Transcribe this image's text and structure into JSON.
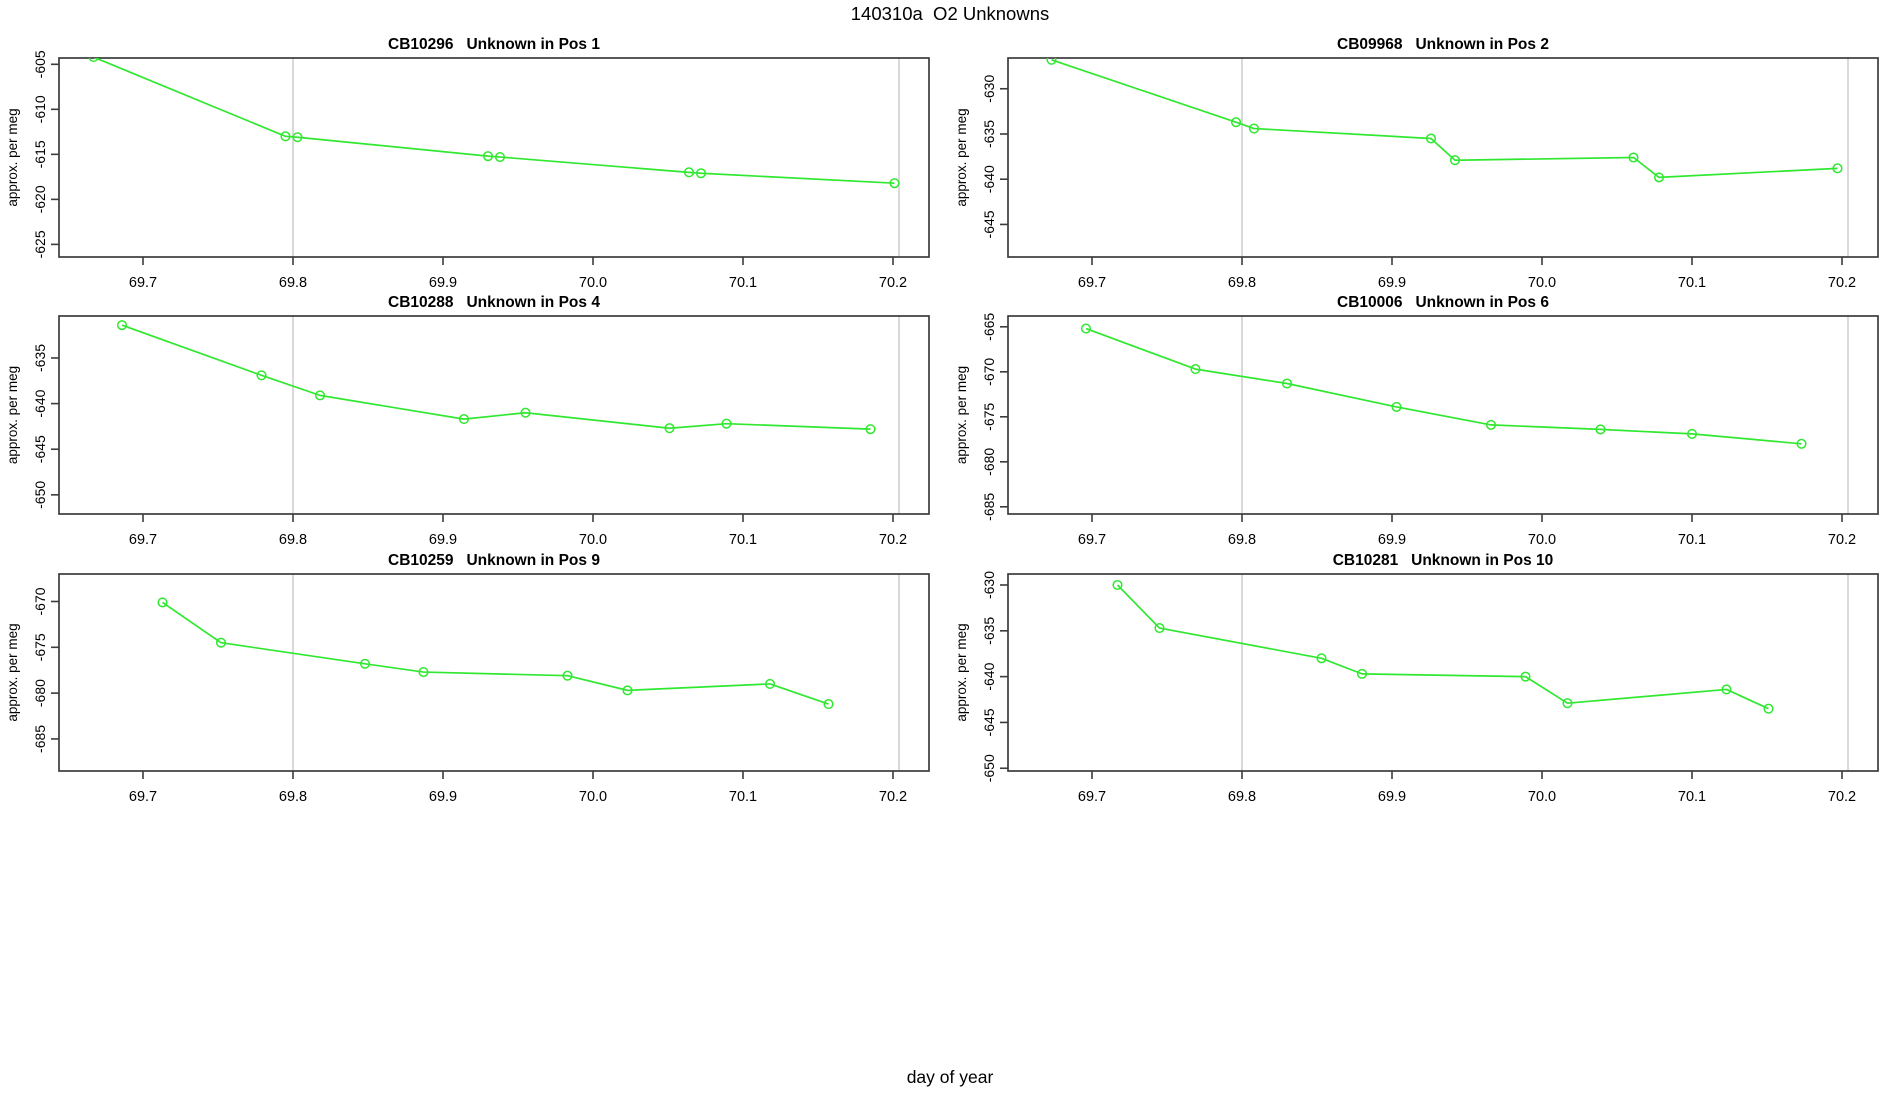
{
  "figure": {
    "title": "140310a  O2 Unknowns",
    "xlabel": "day of year"
  },
  "colors": {
    "series_green": "#30e830",
    "grid": "#d9d9d9",
    "axis": "#3c3c3c",
    "text": "#000000",
    "background": "#ffffff"
  },
  "chart_data": [
    {
      "type": "line",
      "sample_id": "CB10296",
      "position": "Pos 1",
      "title": "CB10296   Unknown in Pos 1",
      "ylabel": "approx. per meg",
      "x_ticks": [
        "69.7",
        "69.8",
        "69.9",
        "70.0",
        "70.1",
        "70.2"
      ],
      "y_ticks": [
        -605,
        -610,
        -615,
        -620,
        -625
      ],
      "xlim": [
        69.644,
        70.224
      ],
      "ylim": [
        -626.4,
        -604.3
      ],
      "ref_lines_x": [
        69.8,
        70.204
      ],
      "points": [
        [
          69.667,
          -604.2
        ],
        [
          69.795,
          -613.0
        ],
        [
          69.803,
          -613.1
        ],
        [
          69.93,
          -615.2
        ],
        [
          69.938,
          -615.3
        ],
        [
          70.064,
          -617.0
        ],
        [
          70.072,
          -617.1
        ],
        [
          70.201,
          -618.2
        ]
      ]
    },
    {
      "type": "line",
      "sample_id": "CB09968",
      "position": "Pos 2",
      "title": "CB09968   Unknown in Pos 2",
      "ylabel": "approx. per meg",
      "x_ticks": [
        "69.7",
        "69.8",
        "69.9",
        "70.0",
        "70.1",
        "70.2"
      ],
      "y_ticks": [
        -630,
        -635,
        -640,
        -645
      ],
      "xlim": [
        69.644,
        70.224
      ],
      "ylim": [
        -648.6,
        -626.6
      ],
      "ref_lines_x": [
        69.8,
        70.204
      ],
      "points": [
        [
          69.673,
          -626.8
        ],
        [
          69.796,
          -633.7
        ],
        [
          69.808,
          -634.4
        ],
        [
          69.926,
          -635.5
        ],
        [
          69.942,
          -637.9
        ],
        [
          70.061,
          -637.6
        ],
        [
          70.078,
          -639.8
        ],
        [
          70.197,
          -638.8
        ]
      ]
    },
    {
      "type": "line",
      "sample_id": "CB10288",
      "position": "Pos 4",
      "title": "CB10288   Unknown in Pos 4",
      "ylabel": "approx. per meg",
      "x_ticks": [
        "69.7",
        "69.8",
        "69.9",
        "70.0",
        "70.1",
        "70.2"
      ],
      "y_ticks": [
        -635,
        -640,
        -645,
        -650
      ],
      "xlim": [
        69.644,
        70.224
      ],
      "ylim": [
        -652.1,
        -630.4
      ],
      "ref_lines_x": [
        69.8,
        70.204
      ],
      "points": [
        [
          69.686,
          -631.4
        ],
        [
          69.779,
          -636.9
        ],
        [
          69.818,
          -639.1
        ],
        [
          69.914,
          -641.7
        ],
        [
          69.955,
          -641.0
        ],
        [
          70.051,
          -642.7
        ],
        [
          70.089,
          -642.2
        ],
        [
          70.185,
          -642.8
        ]
      ]
    },
    {
      "type": "line",
      "sample_id": "CB10006",
      "position": "Pos 6",
      "title": "CB10006   Unknown in Pos 6",
      "ylabel": "approx. per meg",
      "x_ticks": [
        "69.7",
        "69.8",
        "69.9",
        "70.0",
        "70.1",
        "70.2"
      ],
      "y_ticks": [
        -665,
        -670,
        -675,
        -680,
        -685
      ],
      "xlim": [
        69.644,
        70.224
      ],
      "ylim": [
        -685.8,
        -663.8
      ],
      "ref_lines_x": [
        69.8,
        70.204
      ],
      "points": [
        [
          69.696,
          -665.2
        ],
        [
          69.769,
          -669.7
        ],
        [
          69.83,
          -671.3
        ],
        [
          69.903,
          -673.9
        ],
        [
          69.966,
          -675.9
        ],
        [
          70.039,
          -676.4
        ],
        [
          70.1,
          -676.9
        ],
        [
          70.173,
          -678.0
        ]
      ]
    },
    {
      "type": "line",
      "sample_id": "CB10259",
      "position": "Pos 9",
      "title": "CB10259   Unknown in Pos 9",
      "ylabel": "approx. per meg",
      "x_ticks": [
        "69.7",
        "69.8",
        "69.9",
        "70.0",
        "70.1",
        "70.2"
      ],
      "y_ticks": [
        -670,
        -675,
        -680,
        -685
      ],
      "xlim": [
        69.644,
        70.224
      ],
      "ylim": [
        -688.5,
        -667.0
      ],
      "ref_lines_x": [
        69.8,
        70.204
      ],
      "points": [
        [
          69.713,
          -670.1
        ],
        [
          69.752,
          -674.5
        ],
        [
          69.848,
          -676.8
        ],
        [
          69.887,
          -677.7
        ],
        [
          69.983,
          -678.1
        ],
        [
          70.023,
          -679.7
        ],
        [
          70.118,
          -679.0
        ],
        [
          70.157,
          -681.2
        ]
      ]
    },
    {
      "type": "line",
      "sample_id": "CB10281",
      "position": "Pos 10",
      "title": "CB10281   Unknown in Pos 10",
      "ylabel": "approx. per meg",
      "x_ticks": [
        "69.7",
        "69.8",
        "69.9",
        "70.0",
        "70.1",
        "70.2"
      ],
      "y_ticks": [
        -630,
        -635,
        -640,
        -645,
        -650
      ],
      "xlim": [
        69.644,
        70.224
      ],
      "ylim": [
        -650.3,
        -628.8
      ],
      "ref_lines_x": [
        69.8,
        70.204
      ],
      "points": [
        [
          69.717,
          -630.0
        ],
        [
          69.745,
          -634.7
        ],
        [
          69.853,
          -638.0
        ],
        [
          69.88,
          -639.7
        ],
        [
          69.989,
          -640.0
        ],
        [
          70.017,
          -642.9
        ],
        [
          70.123,
          -641.4
        ],
        [
          70.151,
          -643.5
        ]
      ]
    }
  ]
}
